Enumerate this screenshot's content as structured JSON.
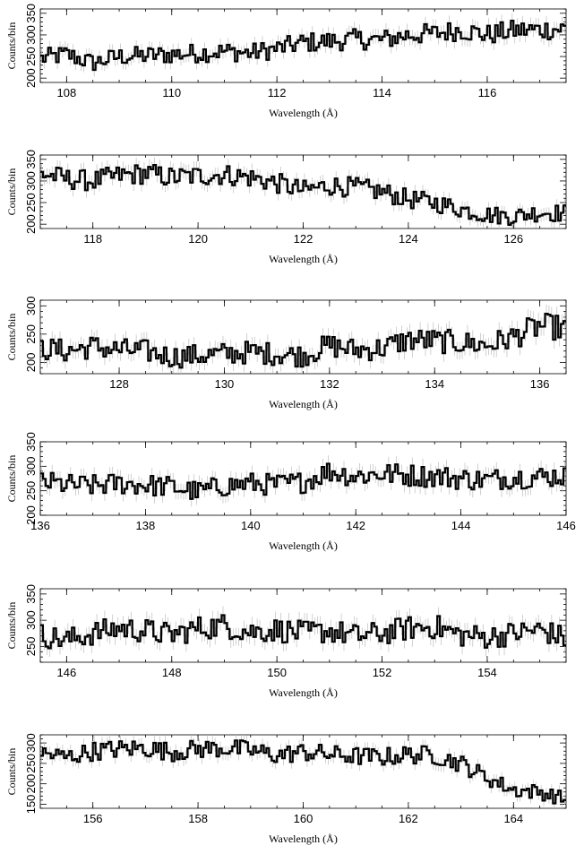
{
  "chart_data": [
    {
      "type": "line",
      "style": "step-histogram-with-error-bars",
      "xlabel": "Wavelength (Å)",
      "ylabel": "Counts/bin",
      "xlim": [
        107.5,
        117.5
      ],
      "ylim": [
        190,
        360
      ],
      "xticks": [
        108,
        110,
        112,
        114,
        116
      ],
      "yticks": [
        200,
        250,
        300,
        350
      ],
      "grid": false,
      "series": [
        {
          "x": [
            107.5,
            108.0,
            108.5,
            109.0,
            109.5,
            110.0,
            110.5,
            111.0,
            111.5,
            112.0,
            112.5,
            113.0,
            113.5,
            114.0,
            114.5,
            115.0,
            115.5,
            116.0,
            116.5,
            117.0,
            117.5
          ],
          "y": [
            245,
            255,
            235,
            250,
            252,
            255,
            258,
            262,
            258,
            268,
            282,
            285,
            290,
            288,
            300,
            303,
            312,
            300,
            310,
            312,
            315
          ]
        }
      ]
    },
    {
      "type": "line",
      "style": "step-histogram-with-error-bars",
      "xlabel": "Wavelength (Å)",
      "ylabel": "Counts/bin",
      "xlim": [
        117,
        127
      ],
      "ylim": [
        190,
        360
      ],
      "xticks": [
        118,
        120,
        122,
        124,
        126
      ],
      "yticks": [
        200,
        250,
        300,
        350
      ],
      "grid": false,
      "series": [
        {
          "x": [
            117.0,
            117.5,
            118.0,
            118.5,
            119.0,
            119.5,
            120.0,
            120.5,
            121.0,
            121.5,
            122.0,
            122.5,
            123.0,
            123.5,
            124.0,
            124.5,
            125.0,
            125.5,
            126.0,
            126.5,
            127.0
          ],
          "y": [
            318,
            305,
            300,
            312,
            318,
            308,
            312,
            315,
            308,
            295,
            278,
            290,
            285,
            275,
            258,
            250,
            235,
            222,
            218,
            228,
            225
          ]
        }
      ]
    },
    {
      "type": "line",
      "style": "step-histogram-with-error-bars",
      "xlabel": "Wavelength (Å)",
      "ylabel": "Counts/bin",
      "xlim": [
        126.5,
        136.5
      ],
      "ylim": [
        180,
        310
      ],
      "xticks": [
        128,
        130,
        132,
        134,
        136
      ],
      "yticks": [
        200,
        250,
        300
      ],
      "grid": false,
      "series": [
        {
          "x": [
            126.5,
            127.0,
            127.5,
            128.0,
            128.5,
            129.0,
            129.5,
            130.0,
            130.5,
            131.0,
            131.5,
            132.0,
            132.5,
            133.0,
            133.5,
            134.0,
            134.5,
            135.0,
            135.5,
            136.0,
            136.5
          ],
          "y": [
            225,
            220,
            228,
            222,
            220,
            210,
            212,
            215,
            218,
            215,
            212,
            230,
            222,
            225,
            240,
            238,
            235,
            230,
            245,
            265,
            260
          ]
        }
      ]
    },
    {
      "type": "line",
      "style": "step-histogram-with-error-bars",
      "xlabel": "Wavelength (Å)",
      "ylabel": "Counts/bin",
      "xlim": [
        136,
        146
      ],
      "ylim": [
        200,
        350
      ],
      "xticks": [
        136,
        138,
        140,
        142,
        144,
        146
      ],
      "yticks": [
        200,
        250,
        300,
        350
      ],
      "grid": false,
      "series": [
        {
          "x": [
            136.0,
            136.5,
            137.0,
            137.5,
            138.0,
            138.5,
            139.0,
            139.5,
            140.0,
            140.5,
            141.0,
            141.5,
            142.0,
            142.5,
            143.0,
            143.5,
            144.0,
            144.5,
            145.0,
            145.5,
            146.0
          ],
          "y": [
            268,
            262,
            260,
            265,
            262,
            258,
            248,
            260,
            265,
            262,
            268,
            290,
            280,
            285,
            282,
            280,
            275,
            272,
            278,
            278,
            282
          ]
        }
      ]
    },
    {
      "type": "line",
      "style": "step-histogram-with-error-bars",
      "xlabel": "Wavelength (Å)",
      "ylabel": "Counts/bin",
      "xlim": [
        145.5,
        155.5
      ],
      "ylim": [
        220,
        360
      ],
      "xticks": [
        146,
        148,
        150,
        152,
        154
      ],
      "yticks": [
        250,
        300,
        350
      ],
      "grid": false,
      "series": [
        {
          "x": [
            145.5,
            146.0,
            146.5,
            147.0,
            147.5,
            148.0,
            148.5,
            149.0,
            149.5,
            150.0,
            150.5,
            151.0,
            151.5,
            152.0,
            152.5,
            153.0,
            153.5,
            154.0,
            154.5,
            155.0,
            155.5
          ],
          "y": [
            272,
            262,
            275,
            285,
            280,
            272,
            285,
            290,
            278,
            282,
            275,
            280,
            270,
            275,
            285,
            288,
            272,
            268,
            275,
            282,
            265
          ]
        }
      ]
    },
    {
      "type": "line",
      "style": "step-histogram-with-error-bars",
      "xlabel": "Wavelength (Å)",
      "ylabel": "Counts/bin",
      "xlim": [
        155,
        165
      ],
      "ylim": [
        140,
        320
      ],
      "xticks": [
        156,
        158,
        160,
        162,
        164
      ],
      "yticks": [
        150,
        200,
        250,
        300
      ],
      "grid": false,
      "series": [
        {
          "x": [
            155.0,
            155.5,
            156.0,
            156.5,
            157.0,
            157.5,
            158.0,
            158.5,
            159.0,
            159.5,
            160.0,
            160.5,
            161.0,
            161.5,
            162.0,
            162.5,
            163.0,
            163.5,
            164.0,
            164.5,
            165.0
          ],
          "y": [
            275,
            265,
            280,
            285,
            288,
            278,
            285,
            288,
            282,
            270,
            278,
            272,
            268,
            265,
            272,
            270,
            250,
            215,
            185,
            180,
            162
          ]
        }
      ]
    }
  ]
}
